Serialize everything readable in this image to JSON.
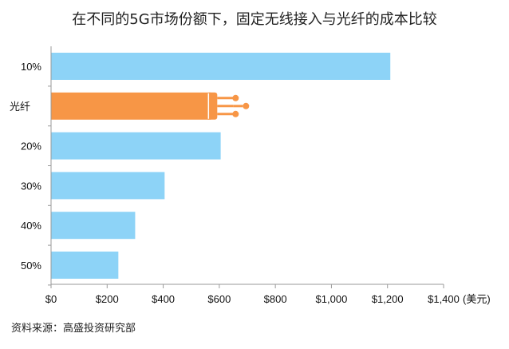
{
  "chart_data": {
    "type": "bar",
    "orientation": "horizontal",
    "title": "在不同的5G市场份额下，固定无线接入与光纤的成本比较",
    "categories": [
      "10%",
      "光纤",
      "20%",
      "30%",
      "40%",
      "50%"
    ],
    "values": [
      1210,
      570,
      605,
      405,
      300,
      240
    ],
    "highlight_category": "光纤",
    "xlim": [
      0,
      1400
    ],
    "x_ticks": [
      "$0",
      "$200",
      "$400",
      "$600",
      "$800",
      "$1,000",
      "$1,200",
      "$1,400"
    ],
    "x_unit": "(美元)",
    "grid": false,
    "colors": {
      "bar": "#8dd3f7",
      "highlight": "#f79646",
      "axis": "#999999"
    },
    "highlight_icon": "fiber-optic-cable-icon",
    "source": "资料来源：高盛投资研究部"
  }
}
